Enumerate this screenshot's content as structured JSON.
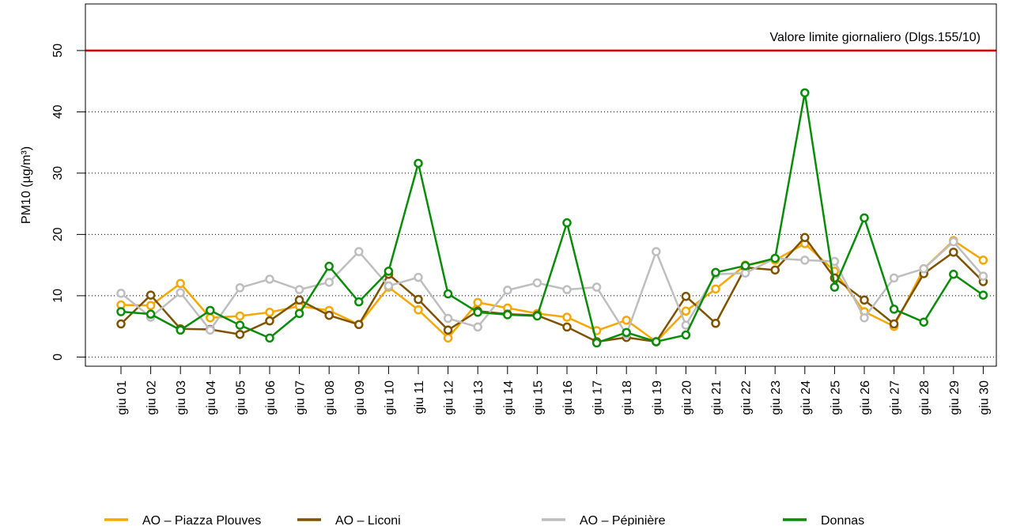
{
  "chart_data": {
    "type": "line",
    "y_label": "PM10 (µg/m³)",
    "categories": [
      "giu 01",
      "giu 02",
      "giu 03",
      "giu 04",
      "giu 05",
      "giu 06",
      "giu 07",
      "giu 08",
      "giu 09",
      "giu 10",
      "giu 11",
      "giu 12",
      "giu 13",
      "giu 14",
      "giu 15",
      "giu 16",
      "giu 17",
      "giu 18",
      "giu 19",
      "giu 20",
      "giu 21",
      "giu 22",
      "giu 23",
      "giu 24",
      "giu 25",
      "giu 26",
      "giu 27",
      "giu 28",
      "giu 29",
      "giu 30"
    ],
    "series": [
      {
        "name": "AO – Piazza Plouves",
        "color": "#f5a800",
        "values": [
          8.5,
          8.4,
          12,
          6.4,
          6.7,
          7.3,
          8.3,
          7.6,
          5.3,
          11.4,
          7.7,
          3.1,
          8.9,
          8.0,
          7.1,
          6.5,
          4.3,
          6.0,
          2.5,
          7.5,
          11.1,
          15.0,
          15.8,
          18.5,
          14.0,
          7.4,
          5.0,
          14.4,
          19.0,
          15.8
        ]
      },
      {
        "name": "AO – Liconi",
        "color": "#7f5200",
        "values": [
          5.4,
          10.1,
          4.6,
          4.5,
          3.7,
          5.9,
          9.3,
          6.8,
          5.3,
          13.5,
          9.4,
          4.4,
          7.5,
          7.0,
          6.8,
          4.9,
          2.5,
          3.2,
          2.5,
          9.9,
          5.5,
          14.6,
          14.2,
          19.5,
          12.9,
          9.3,
          5.4,
          13.6,
          17.1,
          12.3
        ]
      },
      {
        "name": "AO – Pépinière",
        "color": "#bebebe",
        "values": [
          10.4,
          6.5,
          10.5,
          4.4,
          11.3,
          12.7,
          11.0,
          12.2,
          17.2,
          11.6,
          13.0,
          6.3,
          4.9,
          10.9,
          12.1,
          11.0,
          11.4,
          3.7,
          17.2,
          5.2,
          13.5,
          13.7,
          16.1,
          15.8,
          15.6,
          6.4,
          12.9,
          14.4,
          18.8,
          13.2
        ]
      },
      {
        "name": "Donnas",
        "color": "#0a8c0a",
        "values": [
          7.4,
          7.0,
          4.4,
          7.6,
          5.2,
          3.1,
          7.1,
          14.8,
          9.0,
          14.0,
          31.6,
          10.3,
          7.3,
          6.9,
          6.7,
          21.9,
          2.3,
          4.0,
          2.5,
          3.6,
          13.8,
          14.9,
          16.1,
          43.1,
          11.4,
          22.7,
          7.8,
          5.7,
          13.5,
          10.1
        ]
      }
    ],
    "limit": {
      "value": 50,
      "label": "Valore limite giornaliero (Dlgs.155/10)",
      "color": "#e00000"
    },
    "ylim": [
      -1.5,
      57.6
    ],
    "yticks": [
      0,
      10,
      20,
      30,
      40,
      50
    ],
    "grid": true
  }
}
